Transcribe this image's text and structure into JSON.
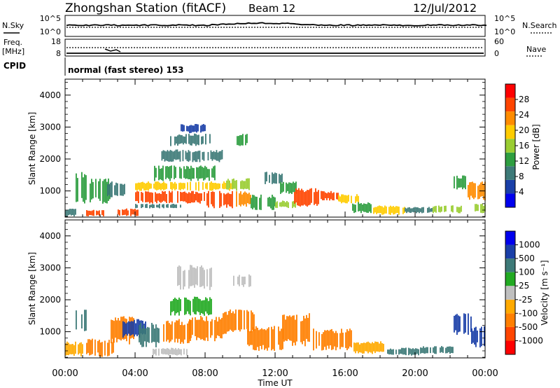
{
  "header": {
    "station": "Zhongshan Station (fitACF)",
    "beam": "Beam 12",
    "date": "12/Jul/2012"
  },
  "summary_panels": {
    "nsky_label": "N.Sky",
    "nsearch_label": "N.Search",
    "count_ticks": [
      "10^5",
      "10^0"
    ],
    "freq_label_1": "Freq.",
    "freq_label_2": "[MHz]",
    "freq_ticks": [
      "18",
      "8"
    ],
    "nave_label": "Nave",
    "nave_ticks": [
      "60",
      "0"
    ],
    "cpid_label": "CPID",
    "cpid_value": "normal (fast stereo) 153"
  },
  "colors": {
    "power_scale": [
      "#0000ee",
      "#1a3fa8",
      "#3d7a78",
      "#2e9e40",
      "#9acd32",
      "#ffcc00",
      "#ff8c00",
      "#ff4500",
      "#ff0000"
    ],
    "velocity_scale": [
      "#ff0000",
      "#ff4500",
      "#ff7f00",
      "#ffaa00",
      "#bfbfbf",
      "#22aa22",
      "#3d7a78",
      "#1a3fa8",
      "#0000ee"
    ]
  },
  "chart_data": [
    {
      "type": "heatmap",
      "name": "power",
      "xlabel": "Time UT",
      "ylabel": "Slant Range [km]",
      "xlim": [
        0,
        24
      ],
      "ylim": [
        180,
        4500
      ],
      "x_ticks": [
        "00:00",
        "04:00",
        "08:00",
        "12:00",
        "16:00",
        "20:00",
        "00:00"
      ],
      "y_ticks": [
        "1000",
        "2000",
        "3000",
        "4000"
      ],
      "colorbar_label": "Power [dB]",
      "colorbar_ticks": [
        "4",
        "8",
        "12",
        "16",
        "20",
        "24",
        "28"
      ],
      "cells": [
        {
          "t0": 0.0,
          "t1": 0.6,
          "r0": 200,
          "r1": 450,
          "v": 8
        },
        {
          "t0": 0.6,
          "t1": 1.2,
          "r0": 500,
          "r1": 1600,
          "v": 12
        },
        {
          "t0": 1.2,
          "t1": 2.2,
          "r0": 200,
          "r1": 420,
          "v": 28
        },
        {
          "t0": 1.4,
          "t1": 2.6,
          "r0": 600,
          "r1": 1400,
          "v": 12
        },
        {
          "t0": 2.4,
          "t1": 3.4,
          "r0": 800,
          "r1": 1300,
          "v": 8
        },
        {
          "t0": 3.0,
          "t1": 4.2,
          "r0": 200,
          "r1": 450,
          "v": 28
        },
        {
          "t0": 4.0,
          "t1": 6.6,
          "r0": 450,
          "r1": 600,
          "v": 8
        },
        {
          "t0": 4.0,
          "t1": 8.0,
          "r0": 600,
          "r1": 1000,
          "v": 28
        },
        {
          "t0": 4.0,
          "t1": 9.6,
          "r0": 1000,
          "r1": 1300,
          "v": 20
        },
        {
          "t0": 5.0,
          "t1": 8.6,
          "r0": 1300,
          "r1": 1800,
          "v": 12
        },
        {
          "t0": 5.5,
          "t1": 9.0,
          "r0": 1900,
          "r1": 2300,
          "v": 8
        },
        {
          "t0": 6.0,
          "t1": 8.4,
          "r0": 2400,
          "r1": 2800,
          "v": 8
        },
        {
          "t0": 6.6,
          "t1": 8.0,
          "r0": 2800,
          "r1": 3100,
          "v": 4
        },
        {
          "t0": 8.0,
          "t1": 9.6,
          "r0": 450,
          "r1": 1000,
          "v": 28
        },
        {
          "t0": 9.6,
          "t1": 10.6,
          "r0": 500,
          "r1": 1000,
          "v": 24
        },
        {
          "t0": 9.2,
          "t1": 10.6,
          "r0": 1000,
          "r1": 1400,
          "v": 16
        },
        {
          "t0": 9.8,
          "t1": 10.4,
          "r0": 2400,
          "r1": 2800,
          "v": 12
        },
        {
          "t0": 10.6,
          "t1": 12.0,
          "r0": 400,
          "r1": 900,
          "v": 12
        },
        {
          "t0": 11.4,
          "t1": 12.4,
          "r0": 1200,
          "r1": 1600,
          "v": 8
        },
        {
          "t0": 12.0,
          "t1": 13.2,
          "r0": 450,
          "r1": 700,
          "v": 16
        },
        {
          "t0": 12.2,
          "t1": 13.2,
          "r0": 900,
          "r1": 1300,
          "v": 12
        },
        {
          "t0": 13.0,
          "t1": 14.6,
          "r0": 500,
          "r1": 1100,
          "v": 28
        },
        {
          "t0": 14.6,
          "t1": 15.6,
          "r0": 700,
          "r1": 1000,
          "v": 28
        },
        {
          "t0": 15.6,
          "t1": 16.8,
          "r0": 600,
          "r1": 900,
          "v": 20
        },
        {
          "t0": 16.4,
          "t1": 17.6,
          "r0": 300,
          "r1": 650,
          "v": 12
        },
        {
          "t0": 17.6,
          "t1": 19.4,
          "r0": 250,
          "r1": 550,
          "v": 20
        },
        {
          "t0": 19.4,
          "t1": 21.0,
          "r0": 300,
          "r1": 500,
          "v": 8
        },
        {
          "t0": 21.0,
          "t1": 22.6,
          "r0": 300,
          "r1": 550,
          "v": 16
        },
        {
          "t0": 22.2,
          "t1": 23.0,
          "r0": 1000,
          "r1": 1500,
          "v": 12
        },
        {
          "t0": 23.0,
          "t1": 24.0,
          "r0": 700,
          "r1": 1300,
          "v": 24
        },
        {
          "t0": 23.4,
          "t1": 24.0,
          "r0": 300,
          "r1": 600,
          "v": 16
        }
      ]
    },
    {
      "type": "heatmap",
      "name": "velocity",
      "xlabel": "Time UT",
      "ylabel": "Slant Range [km]",
      "xlim": [
        0,
        24
      ],
      "ylim": [
        180,
        4500
      ],
      "x_ticks": [
        "00:00",
        "04:00",
        "08:00",
        "12:00",
        "16:00",
        "20:00",
        "00:00"
      ],
      "y_ticks": [
        "1000",
        "2000",
        "3000",
        "4000"
      ],
      "colorbar_label": "Velocity [m s⁻¹]",
      "colorbar_ticks": [
        "1000",
        "500",
        "100",
        "25",
        "-25",
        "-100",
        "-500",
        "-1000"
      ],
      "colorbar_values": [
        1000,
        500,
        100,
        25,
        -25,
        -100,
        -500,
        -1000
      ],
      "cells": [
        {
          "t0": 0.0,
          "t1": 1.0,
          "r0": 200,
          "r1": 700,
          "v": -100
        },
        {
          "t0": 0.6,
          "t1": 1.2,
          "r0": 1000,
          "r1": 1700,
          "v": 100
        },
        {
          "t0": 1.2,
          "t1": 2.8,
          "r0": 200,
          "r1": 800,
          "v": -300
        },
        {
          "t0": 2.6,
          "t1": 4.0,
          "r0": 600,
          "r1": 1500,
          "v": -200
        },
        {
          "t0": 3.2,
          "t1": 4.6,
          "r0": 800,
          "r1": 1400,
          "v": 500
        },
        {
          "t0": 4.2,
          "t1": 5.6,
          "r0": 500,
          "r1": 1300,
          "v": 300
        },
        {
          "t0": 5.0,
          "t1": 7.0,
          "r0": 250,
          "r1": 500,
          "v": 0
        },
        {
          "t0": 5.6,
          "t1": 7.2,
          "r0": 600,
          "r1": 1400,
          "v": -150
        },
        {
          "t0": 7.0,
          "t1": 9.0,
          "r0": 700,
          "r1": 1500,
          "v": -200
        },
        {
          "t0": 6.0,
          "t1": 8.4,
          "r0": 1500,
          "r1": 2100,
          "v": 50
        },
        {
          "t0": 6.4,
          "t1": 8.4,
          "r0": 2300,
          "r1": 3100,
          "v": 0
        },
        {
          "t0": 9.0,
          "t1": 10.8,
          "r0": 900,
          "r1": 1700,
          "v": -200
        },
        {
          "t0": 9.6,
          "t1": 10.6,
          "r0": 2400,
          "r1": 2800,
          "v": 0
        },
        {
          "t0": 10.4,
          "t1": 12.4,
          "r0": 400,
          "r1": 1200,
          "v": -200
        },
        {
          "t0": 12.4,
          "t1": 14.0,
          "r0": 500,
          "r1": 1600,
          "v": -200
        },
        {
          "t0": 14.0,
          "t1": 16.4,
          "r0": 400,
          "r1": 1100,
          "v": -300
        },
        {
          "t0": 16.4,
          "t1": 18.4,
          "r0": 300,
          "r1": 700,
          "v": -100
        },
        {
          "t0": 18.4,
          "t1": 20.2,
          "r0": 250,
          "r1": 500,
          "v": 200
        },
        {
          "t0": 20.2,
          "t1": 22.2,
          "r0": 300,
          "r1": 550,
          "v": 300
        },
        {
          "t0": 22.2,
          "t1": 23.2,
          "r0": 900,
          "r1": 1600,
          "v": 500
        },
        {
          "t0": 23.2,
          "t1": 24.0,
          "r0": 500,
          "r1": 1200,
          "v": 600
        }
      ]
    }
  ]
}
